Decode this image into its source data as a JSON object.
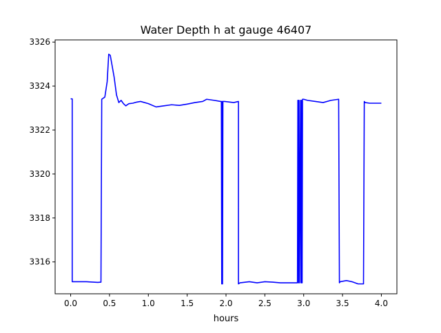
{
  "chart_data": {
    "type": "line",
    "title": "Water Depth h at gauge 46407",
    "xlabel": "hours",
    "ylabel": "",
    "xlim": [
      -0.2,
      4.2
    ],
    "ylim": [
      3314.55,
      3326.1
    ],
    "xticks": [
      0.0,
      0.5,
      1.0,
      1.5,
      2.0,
      2.5,
      3.0,
      3.5,
      4.0
    ],
    "xtick_labels": [
      "0.0",
      "0.5",
      "1.0",
      "1.5",
      "2.0",
      "2.5",
      "3.0",
      "3.5",
      "4.0"
    ],
    "yticks": [
      3316,
      3318,
      3320,
      3322,
      3324,
      3326
    ],
    "ytick_labels": [
      "3316",
      "3318",
      "3320",
      "3322",
      "3324",
      "3326"
    ],
    "grid": false,
    "series": [
      {
        "color": "#0000ff",
        "x": [
          0.0,
          0.02,
          0.02,
          0.05,
          0.2,
          0.35,
          0.39,
          0.4,
          0.44,
          0.47,
          0.49,
          0.51,
          0.53,
          0.56,
          0.59,
          0.62,
          0.65,
          0.68,
          0.71,
          0.75,
          0.8,
          0.85,
          0.9,
          1.0,
          1.1,
          1.2,
          1.3,
          1.4,
          1.5,
          1.6,
          1.7,
          1.75,
          1.85,
          1.93,
          1.94,
          1.945,
          1.95,
          1.955,
          1.96,
          1.98,
          2.1,
          2.16,
          2.16,
          2.18,
          2.3,
          2.4,
          2.5,
          2.6,
          2.7,
          2.9,
          2.92,
          2.925,
          2.93,
          2.935,
          2.94,
          2.945,
          2.96,
          2.965,
          2.97,
          2.975,
          2.98,
          2.985,
          3.0,
          3.05,
          3.15,
          3.25,
          3.35,
          3.45,
          3.46,
          3.47,
          3.55,
          3.62,
          3.7,
          3.77,
          3.78,
          3.79,
          3.85,
          3.95,
          4.0
        ],
        "y": [
          3323.42,
          3323.42,
          3315.1,
          3315.1,
          3315.1,
          3315.07,
          3315.08,
          3323.4,
          3323.5,
          3324.2,
          3325.45,
          3325.4,
          3325.0,
          3324.4,
          3323.6,
          3323.25,
          3323.35,
          3323.2,
          3323.1,
          3323.2,
          3323.22,
          3323.27,
          3323.3,
          3323.2,
          3323.05,
          3323.1,
          3323.15,
          3323.12,
          3323.18,
          3323.25,
          3323.3,
          3323.4,
          3323.35,
          3323.3,
          3323.3,
          3315.0,
          3323.3,
          3315.0,
          3323.3,
          3323.3,
          3323.25,
          3323.3,
          3315.0,
          3315.05,
          3315.1,
          3315.05,
          3315.1,
          3315.08,
          3315.05,
          3315.05,
          3315.05,
          3323.35,
          3323.35,
          3315.05,
          3323.35,
          3315.05,
          3323.35,
          3315.05,
          3323.35,
          3315.05,
          3315.05,
          3323.4,
          3323.4,
          3323.35,
          3323.3,
          3323.25,
          3323.35,
          3323.4,
          3315.05,
          3315.1,
          3315.15,
          3315.1,
          3315.0,
          3315.0,
          3323.3,
          3323.25,
          3323.22,
          3323.22,
          3323.22
        ]
      }
    ]
  }
}
